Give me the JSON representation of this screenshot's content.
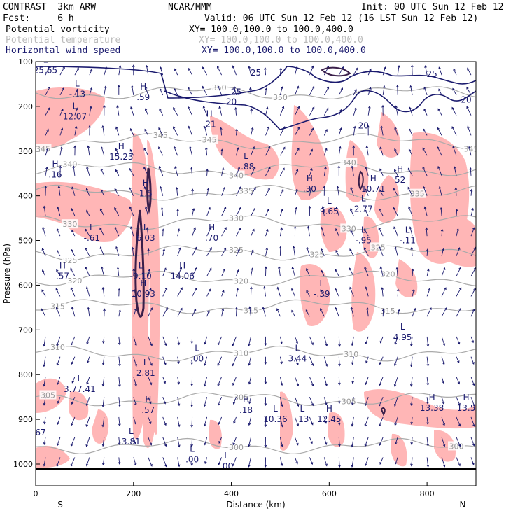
{
  "header": {
    "model": "CONTRAST  3km ARW",
    "forecast": "Fcst:     6 h",
    "center": "NCAR/MMM",
    "init": "Init: 00 UTC Sun 12 Feb 12",
    "valid": "Valid: 06 UTC Sun 12 Feb 12 (16 LST Sun 12 Feb 12)",
    "fields": [
      {
        "name": "Potential vorticity",
        "xy": "XY= 100.0,100.0 to 100.0,400.0",
        "color": "#000000"
      },
      {
        "name": "Potential temperature",
        "xy": "XY= 100.0,100.0 to 100.0,400.0",
        "color": "#bbbbbb"
      },
      {
        "name": "Horizontal wind speed",
        "xy": "XY= 100.0,100.0 to 100.0,400.0",
        "color": "#1a1a6e"
      }
    ]
  },
  "chart_data": {
    "type": "cross-section",
    "xlabel": "Distance (km)",
    "ylabel": "Pressure (hPa)",
    "xlim": [
      0,
      900
    ],
    "ylim": [
      1045,
      100
    ],
    "xticks": [
      0,
      200,
      400,
      600,
      800
    ],
    "yticks": [
      100,
      200,
      300,
      400,
      500,
      600,
      700,
      800,
      900,
      1000
    ],
    "x_end_labels": {
      "left": "S",
      "right": "N"
    },
    "theta_contours": [
      {
        "label": "350",
        "p": 170,
        "lx": [
          375,
          500
        ]
      },
      {
        "label": "345",
        "p": 278,
        "lx": [
          15,
          255,
          355,
          890
        ]
      },
      {
        "label": "340",
        "p": 340,
        "lx": [
          70,
          410,
          640
        ]
      },
      {
        "label": "335",
        "p": 393,
        "lx": [
          430,
          780
        ]
      },
      {
        "label": "330",
        "p": 460,
        "lx": [
          70,
          410,
          640
        ]
      },
      {
        "label": "325",
        "p": 528,
        "lx": [
          70,
          410,
          575,
          700
        ]
      },
      {
        "label": "320",
        "p": 585,
        "lx": [
          80,
          420,
          720
        ]
      },
      {
        "label": "315",
        "p": 648,
        "lx": [
          45,
          440,
          720
        ]
      },
      {
        "label": "310",
        "p": 753,
        "lx": [
          45,
          420,
          645
        ]
      },
      {
        "label": "305",
        "p": 855,
        "lx": [
          25,
          420,
          640
        ]
      },
      {
        "label": "300",
        "p": 960,
        "lx": [
          410,
          860
        ]
      }
    ],
    "wind_speed_contours": [
      {
        "label": "25",
        "x": 450,
        "p": 125
      },
      {
        "label": "25",
        "x": 810,
        "p": 128
      },
      {
        "label": "20",
        "x": 400,
        "p": 190
      },
      {
        "label": "20",
        "x": 670,
        "p": 243
      },
      {
        "label": "20",
        "x": 880,
        "p": 185
      },
      {
        "label": "25",
        "x": 410,
        "p": 168
      }
    ],
    "extrema": [
      {
        "kind": "L",
        "value": "25.65",
        "x": 20,
        "p": 115
      },
      {
        "kind": "L",
        "value": "-.13",
        "x": 85,
        "p": 168
      },
      {
        "kind": "L",
        "value": "12.07",
        "x": 80,
        "p": 218
      },
      {
        "kind": "H",
        "value": ".59",
        "x": 220,
        "p": 175
      },
      {
        "kind": "H",
        "value": ".21",
        "x": 355,
        "p": 235
      },
      {
        "kind": "H",
        "value": "15.23",
        "x": 175,
        "p": 308
      },
      {
        "kind": "H",
        "value": ".16",
        "x": 40,
        "p": 348
      },
      {
        "kind": "L",
        "value": "-.88",
        "x": 430,
        "p": 330
      },
      {
        "kind": "H",
        "value": "1.5",
        "x": 225,
        "p": 390
      },
      {
        "kind": "H",
        "value": ".30",
        "x": 560,
        "p": 380
      },
      {
        "kind": "L",
        "value": "9.65",
        "x": 600,
        "p": 430
      },
      {
        "kind": "H",
        "value": "10.71",
        "x": 690,
        "p": 380
      },
      {
        "kind": "L",
        "value": "2.77",
        "x": 670,
        "p": 425
      },
      {
        "kind": "H",
        "value": "52",
        "x": 745,
        "p": 360
      },
      {
        "kind": "L",
        "value": "-.61",
        "x": 115,
        "p": 490
      },
      {
        "kind": "L",
        "value": "6.03",
        "x": 225,
        "p": 490
      },
      {
        "kind": "H",
        "value": ".70",
        "x": 360,
        "p": 490
      },
      {
        "kind": "L",
        "value": "-.95",
        "x": 670,
        "p": 495
      },
      {
        "kind": "L",
        "value": "-.11",
        "x": 760,
        "p": 495
      },
      {
        "kind": "H",
        "value": ".57",
        "x": 55,
        "p": 575
      },
      {
        "kind": "L",
        "value": "-9.10",
        "x": 215,
        "p": 575
      },
      {
        "kind": "H",
        "value": "14.06",
        "x": 300,
        "p": 575
      },
      {
        "kind": "H",
        "value": "10.93",
        "x": 220,
        "p": 615
      },
      {
        "kind": "L",
        "value": "-.39",
        "x": 585,
        "p": 615
      },
      {
        "kind": "L",
        "value": "4.95",
        "x": 750,
        "p": 712
      },
      {
        "kind": "L",
        "value": ".00",
        "x": 330,
        "p": 760
      },
      {
        "kind": "L",
        "value": "3.44",
        "x": 535,
        "p": 760
      },
      {
        "kind": "L",
        "value": "2.81",
        "x": 225,
        "p": 792
      },
      {
        "kind": "L",
        "value": "3.77.41",
        "x": 90,
        "p": 828
      },
      {
        "kind": "H",
        "value": ".57",
        "x": 230,
        "p": 875
      },
      {
        "kind": "H",
        "value": ".18",
        "x": 430,
        "p": 875
      },
      {
        "kind": "L",
        "value": "10.36",
        "x": 490,
        "p": 895
      },
      {
        "kind": "L",
        "value": ".13",
        "x": 545,
        "p": 895
      },
      {
        "kind": "H",
        "value": "12.45",
        "x": 600,
        "p": 895
      },
      {
        "kind": "H",
        "value": "13.38",
        "x": 810,
        "p": 870
      },
      {
        "kind": "H",
        "value": "13.5",
        "x": 880,
        "p": 870
      },
      {
        "kind": "L",
        "value": "3.81",
        "x": 195,
        "p": 945
      },
      {
        "kind": "L",
        "value": ".00",
        "x": 320,
        "p": 985
      },
      {
        "kind": "L",
        "value": ".00",
        "x": 390,
        "p": 1000
      },
      {
        "kind": "-",
        "value": "67",
        "x": 10,
        "p": 925
      }
    ]
  }
}
